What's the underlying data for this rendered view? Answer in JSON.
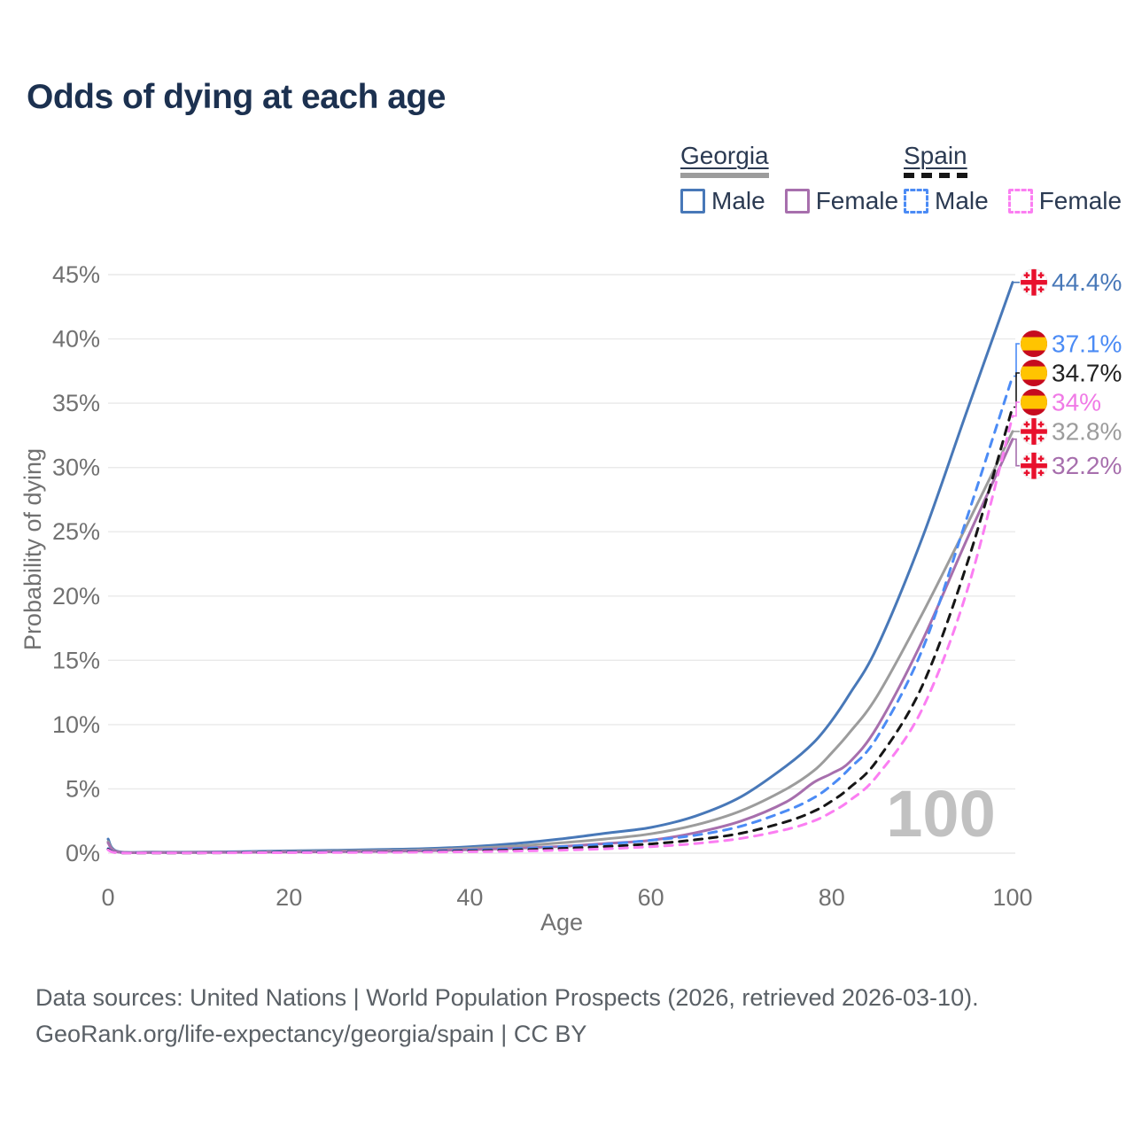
{
  "title": "Odds of dying at each age",
  "colors": {
    "georgia-male": "#4878b8",
    "georgia-female": "#a76fad",
    "georgia-total": "#9c9c9c",
    "spain-male": "#4b8bf5",
    "spain-female": "#fb7ef2",
    "spain-total": "#161616",
    "title_text": "#1c3150",
    "axis_text": "#717171",
    "grid": "#e9e9e9",
    "watermark_text": "#c1c1c1"
  },
  "legend": {
    "groups": [
      {
        "label": "Georgia",
        "underline": "solid",
        "items": [
          {
            "label": "Male",
            "series": "georgia-male"
          },
          {
            "label": "Female",
            "series": "georgia-female"
          }
        ]
      },
      {
        "label": "Spain",
        "underline": "dashed",
        "items": [
          {
            "label": "Male",
            "series": "spain-male"
          },
          {
            "label": "Female",
            "series": "spain-female"
          }
        ]
      }
    ]
  },
  "chart_data": {
    "type": "line",
    "title": "Odds of dying at each age",
    "xlabel": "Age",
    "ylabel": "Probability of dying",
    "xlim": [
      0,
      100
    ],
    "ylim": [
      0,
      45
    ],
    "x_ticks": [
      0,
      20,
      40,
      60,
      80,
      100
    ],
    "y_tick_step": 5,
    "y_tick_suffix": "%",
    "grid": true,
    "watermark": "100",
    "ages": [
      0,
      1,
      5,
      10,
      15,
      20,
      25,
      30,
      35,
      40,
      45,
      50,
      55,
      60,
      65,
      70,
      75,
      78,
      80,
      82,
      85,
      90,
      95,
      100
    ],
    "series": [
      {
        "id": "georgia-male",
        "country": "Georgia",
        "sex": "Male",
        "dashed": false,
        "flag": "georgia",
        "end_label": "44.4%",
        "end_value": 44.4,
        "label_color": "#4878b8",
        "values": [
          1.1,
          0.15,
          0.08,
          0.08,
          0.12,
          0.18,
          0.22,
          0.28,
          0.35,
          0.5,
          0.75,
          1.1,
          1.55,
          2.0,
          2.9,
          4.4,
          6.8,
          8.6,
          10.3,
          12.4,
          16.0,
          24.5,
          34.5,
          44.4
        ]
      },
      {
        "id": "georgia-total",
        "country": "Georgia",
        "sex": "Both",
        "dashed": false,
        "flag": "georgia",
        "end_label": "32.8%",
        "end_value": 32.8,
        "label_color": "#9c9c9c",
        "values": [
          0.9,
          0.12,
          0.06,
          0.06,
          0.09,
          0.13,
          0.16,
          0.2,
          0.26,
          0.38,
          0.55,
          0.8,
          1.1,
          1.5,
          2.2,
          3.3,
          5.0,
          6.4,
          7.8,
          9.4,
          12.2,
          18.6,
          25.6,
          32.8
        ]
      },
      {
        "id": "georgia-female",
        "country": "Georgia",
        "sex": "Female",
        "dashed": false,
        "flag": "georgia",
        "end_label": "32.2%",
        "end_value": 32.2,
        "label_color": "#a76fad",
        "values": [
          0.8,
          0.1,
          0.05,
          0.05,
          0.07,
          0.09,
          0.11,
          0.14,
          0.18,
          0.27,
          0.38,
          0.52,
          0.75,
          1.0,
          1.6,
          2.5,
          4.0,
          5.5,
          6.2,
          7.1,
          9.8,
          16.5,
          24.5,
          32.2
        ]
      },
      {
        "id": "spain-male",
        "country": "Spain",
        "sex": "Male",
        "dashed": true,
        "flag": "spain",
        "end_label": "37.1%",
        "end_value": 37.1,
        "label_color": "#4b8bf5",
        "values": [
          0.35,
          0.05,
          0.03,
          0.03,
          0.06,
          0.09,
          0.1,
          0.12,
          0.16,
          0.24,
          0.35,
          0.5,
          0.7,
          1.0,
          1.4,
          2.1,
          3.3,
          4.3,
          5.3,
          6.6,
          9.0,
          15.8,
          26.2,
          37.1
        ]
      },
      {
        "id": "spain-total",
        "country": "Spain",
        "sex": "Both",
        "dashed": true,
        "flag": "spain",
        "end_label": "34.7%",
        "end_value": 34.7,
        "label_color": "#222222",
        "values": [
          0.3,
          0.04,
          0.02,
          0.02,
          0.04,
          0.06,
          0.07,
          0.09,
          0.12,
          0.17,
          0.25,
          0.36,
          0.52,
          0.72,
          1.05,
          1.55,
          2.45,
          3.25,
          4.05,
          5.1,
          7.2,
          13.0,
          22.6,
          34.7
        ]
      },
      {
        "id": "spain-female",
        "country": "Spain",
        "sex": "Female",
        "dashed": true,
        "flag": "spain",
        "end_label": "34%",
        "end_value": 34.0,
        "label_color": "#f07ae6",
        "values": [
          0.25,
          0.03,
          0.02,
          0.02,
          0.03,
          0.04,
          0.05,
          0.06,
          0.08,
          0.11,
          0.16,
          0.23,
          0.34,
          0.5,
          0.75,
          1.15,
          1.85,
          2.5,
          3.2,
          4.1,
          6.0,
          11.2,
          20.5,
          34.0
        ]
      }
    ],
    "flag_colors": {
      "georgia_red": "#e8112d",
      "spain_red": "#c60b1e",
      "spain_yellow": "#ffc400"
    }
  },
  "footer": {
    "line1": "Data sources: United Nations | World Population Prospects (2026, retrieved 2026-03-10).",
    "line2": "GeoRank.org/life-expectancy/georgia/spain | CC BY"
  }
}
